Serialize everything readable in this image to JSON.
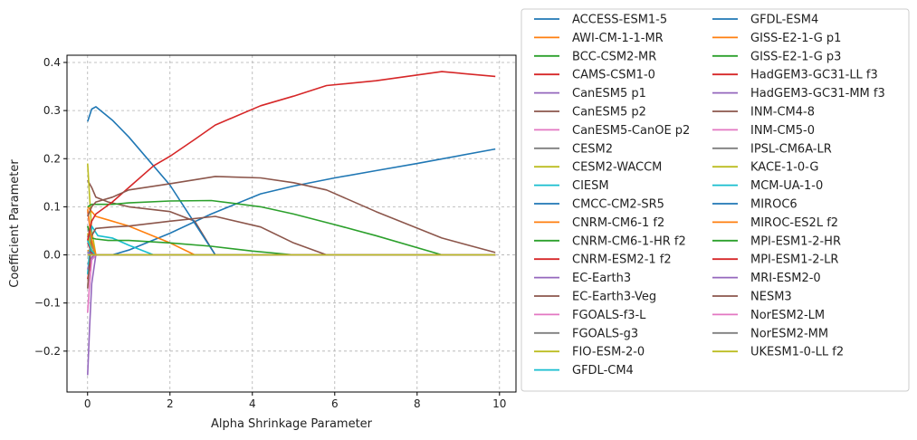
{
  "chart_data": {
    "type": "line",
    "xlabel": "Alpha Shrinkage Parameter",
    "ylabel": "Coefficient Parameter",
    "xlim": [
      -0.5,
      10.4
    ],
    "ylim": [
      -0.285,
      0.415
    ],
    "xticks": [
      0,
      2,
      4,
      6,
      8,
      10
    ],
    "yticks": [
      -0.2,
      -0.1,
      0.0,
      0.1,
      0.2,
      0.3,
      0.4
    ],
    "xtick_labels": [
      "0",
      "2",
      "4",
      "6",
      "8",
      "10"
    ],
    "ytick_labels": [
      "−0.2",
      "−0.1",
      "0.0",
      "0.1",
      "0.2",
      "0.3",
      "0.4"
    ],
    "grid": true,
    "legend_placement": "outside-right",
    "legend_columns": 2,
    "series": [
      {
        "name": "ACCESS-ESM1-5",
        "color": "#1f77b4",
        "x": [
          0,
          0.2,
          0.6,
          1.0,
          2.0,
          3.0,
          4.2,
          5.0,
          6.0,
          7.0,
          8.0,
          9.9
        ],
        "y": [
          -0.02,
          0.0,
          0.0,
          0.01,
          0.045,
          0.085,
          0.127,
          0.143,
          0.16,
          0.175,
          0.19,
          0.22
        ]
      },
      {
        "name": "AWI-CM-1-1-MR",
        "color": "#ff7f0e",
        "x": [
          0,
          0.1,
          0.2,
          9.9
        ],
        "y": [
          0.01,
          0.002,
          0.0,
          0.0
        ]
      },
      {
        "name": "BCC-CSM2-MR",
        "color": "#2ca02c",
        "x": [
          0,
          0.1,
          0.2,
          0.5,
          1.0,
          2.0,
          3.0,
          4.5,
          6.0,
          8.6,
          9.9
        ],
        "y": [
          0.0,
          0.0,
          0.0,
          0.0,
          0.0,
          0.0,
          0.0,
          0.0,
          0.0,
          0.0,
          0.0
        ]
      },
      {
        "name": "CAMS-CSM1-0",
        "color": "#d62728",
        "x": [
          0,
          0.1,
          0.2,
          9.9
        ],
        "y": [
          -0.05,
          -0.005,
          0.0,
          0.0
        ]
      },
      {
        "name": "CanESM5 p1",
        "color": "#9467bd",
        "x": [
          0,
          0.05,
          0.1,
          0.2,
          9.9
        ],
        "y": [
          -0.25,
          -0.15,
          -0.06,
          0.0,
          0.0
        ]
      },
      {
        "name": "CanESM5 p2",
        "color": "#8c564b",
        "x": [
          0,
          0.1,
          0.2,
          0.5,
          1.0,
          2.0,
          2.6,
          3.1,
          9.9
        ],
        "y": [
          0.155,
          0.14,
          0.12,
          0.11,
          0.1,
          0.09,
          0.07,
          0.0,
          0.0
        ]
      },
      {
        "name": "CanESM5-CanOE p2",
        "color": "#e377c2",
        "x": [
          0,
          0.05,
          0.1,
          0.2,
          9.9
        ],
        "y": [
          0.09,
          0.06,
          0.03,
          0.0,
          0.0
        ]
      },
      {
        "name": "CESM2",
        "color": "#7f7f7f",
        "x": [
          0,
          0.1,
          0.2,
          9.9
        ],
        "y": [
          0.06,
          0.02,
          0.0,
          0.0
        ]
      },
      {
        "name": "CESM2-WACCM",
        "color": "#bcbd22",
        "x": [
          0,
          0.05,
          0.1,
          0.2,
          9.9
        ],
        "y": [
          0.19,
          0.12,
          0.05,
          0.0,
          0.0
        ]
      },
      {
        "name": "CIESM",
        "color": "#17becf",
        "x": [
          0,
          0.1,
          0.25,
          0.6,
          1.0,
          1.6,
          9.9
        ],
        "y": [
          -0.04,
          0.06,
          0.04,
          0.035,
          0.02,
          0.0,
          0.0
        ]
      },
      {
        "name": "CMCC-CM2-SR5",
        "color": "#1f77b4",
        "x": [
          0,
          0.1,
          0.2,
          0.6,
          1.0,
          2.0,
          3.1,
          9.9
        ],
        "y": [
          0.277,
          0.303,
          0.308,
          0.28,
          0.245,
          0.145,
          0.0,
          0.0
        ]
      },
      {
        "name": "CNRM-CM6-1 f2",
        "color": "#ff7f0e",
        "x": [
          0,
          0.1,
          0.2,
          0.6,
          1.0,
          2.0,
          2.6,
          9.9
        ],
        "y": [
          0.1,
          0.09,
          0.08,
          0.07,
          0.06,
          0.025,
          0.0,
          0.0
        ]
      },
      {
        "name": "CNRM-CM6-1-HR f2",
        "color": "#2ca02c",
        "x": [
          0,
          0.1,
          0.2,
          0.5,
          1.0,
          2.0,
          3.0,
          4.0,
          5.0,
          9.9
        ],
        "y": [
          0.06,
          0.035,
          0.033,
          0.03,
          0.03,
          0.025,
          0.018,
          0.008,
          0.0,
          0.0
        ]
      },
      {
        "name": "CNRM-ESM2-1 f2",
        "color": "#d62728",
        "x": [
          0,
          0.1,
          0.2,
          9.9
        ],
        "y": [
          0.025,
          0.005,
          0.0,
          0.0
        ]
      },
      {
        "name": "EC-Earth3",
        "color": "#9467bd",
        "x": [
          0,
          0.1,
          0.2,
          9.9
        ],
        "y": [
          -0.03,
          -0.005,
          0.0,
          0.0
        ]
      },
      {
        "name": "EC-Earth3-Veg",
        "color": "#8c564b",
        "x": [
          0,
          0.1,
          0.2,
          0.6,
          1.0,
          2.0,
          3.1,
          4.2,
          5.0,
          5.8,
          9.9
        ],
        "y": [
          -0.07,
          0.04,
          0.055,
          0.058,
          0.06,
          0.07,
          0.08,
          0.058,
          0.025,
          0.0,
          0.0
        ]
      },
      {
        "name": "FGOALS-f3-L",
        "color": "#e377c2",
        "x": [
          0,
          0.05,
          0.1,
          0.2,
          9.9
        ],
        "y": [
          -0.12,
          -0.06,
          -0.01,
          0.0,
          0.0
        ]
      },
      {
        "name": "FGOALS-g3",
        "color": "#7f7f7f",
        "x": [
          0,
          0.1,
          0.2,
          9.9
        ],
        "y": [
          0.04,
          0.01,
          0.0,
          0.0
        ]
      },
      {
        "name": "FIO-ESM-2-0",
        "color": "#bcbd22",
        "x": [
          0,
          0.1,
          0.2,
          9.9
        ],
        "y": [
          0.045,
          0.01,
          0.0,
          0.0
        ]
      },
      {
        "name": "GFDL-CM4",
        "color": "#17becf",
        "x": [
          0,
          0.1,
          0.2,
          9.9
        ],
        "y": [
          0.03,
          0.008,
          0.0,
          0.0
        ]
      },
      {
        "name": "GFDL-ESM4",
        "color": "#1f77b4",
        "x": [
          0,
          0.1,
          0.2,
          9.9
        ],
        "y": [
          0.005,
          0.001,
          0.0,
          0.0
        ]
      },
      {
        "name": "GISS-E2-1-G p1",
        "color": "#ff7f0e",
        "x": [
          0,
          0.1,
          0.2,
          9.9
        ],
        "y": [
          0.095,
          0.03,
          0.0,
          0.0
        ]
      },
      {
        "name": "GISS-E2-1-G p3",
        "color": "#2ca02c",
        "x": [
          0,
          0.1,
          0.2,
          0.6,
          1.0,
          2.0,
          3.0,
          4.2,
          5.0,
          6.0,
          7.0,
          8.6,
          9.9
        ],
        "y": [
          0.1,
          0.105,
          0.105,
          0.105,
          0.108,
          0.112,
          0.113,
          0.1,
          0.085,
          0.063,
          0.04,
          0.0,
          0.0
        ]
      },
      {
        "name": "HadGEM3-GC31-LL f3",
        "color": "#d62728",
        "x": [
          0,
          0.1,
          0.2,
          0.6,
          1.0,
          1.6,
          2.0,
          2.6,
          3.1,
          4.2,
          5.0,
          5.8,
          7.0,
          8.6,
          9.9
        ],
        "y": [
          0.03,
          0.07,
          0.085,
          0.11,
          0.14,
          0.185,
          0.205,
          0.24,
          0.27,
          0.31,
          0.33,
          0.352,
          0.362,
          0.381,
          0.371
        ]
      },
      {
        "name": "HadGEM3-GC31-MM f3",
        "color": "#9467bd",
        "x": [
          0,
          0.1,
          0.2,
          9.9
        ],
        "y": [
          0.005,
          0.001,
          0.0,
          0.0
        ]
      },
      {
        "name": "INM-CM4-8",
        "color": "#8c564b",
        "x": [
          0,
          0.1,
          0.2,
          0.6,
          1.0,
          2.0,
          3.1,
          4.2,
          5.0,
          5.8,
          7.0,
          8.6,
          9.9
        ],
        "y": [
          0.08,
          0.1,
          0.11,
          0.12,
          0.135,
          0.148,
          0.163,
          0.16,
          0.15,
          0.135,
          0.09,
          0.035,
          0.005
        ]
      },
      {
        "name": "INM-CM5-0",
        "color": "#e377c2",
        "x": [
          0,
          0.1,
          0.2,
          9.9
        ],
        "y": [
          0.0,
          0.0,
          0.0,
          0.0
        ]
      },
      {
        "name": "IPSL-CM6A-LR",
        "color": "#7f7f7f",
        "x": [
          0,
          0.1,
          0.2,
          9.9
        ],
        "y": [
          0.0,
          0.0,
          0.0,
          0.0
        ]
      },
      {
        "name": "KACE-1-0-G",
        "color": "#bcbd22",
        "x": [
          0,
          0.1,
          0.2,
          9.9
        ],
        "y": [
          0.0,
          0.0,
          0.0,
          0.0
        ]
      },
      {
        "name": "MCM-UA-1-0",
        "color": "#17becf",
        "x": [
          0,
          0.1,
          0.2,
          9.9
        ],
        "y": [
          0.0,
          0.0,
          0.0,
          0.0
        ]
      },
      {
        "name": "MIROC6",
        "color": "#1f77b4",
        "x": [
          0,
          0.1,
          0.2,
          9.9
        ],
        "y": [
          0.0,
          0.0,
          0.0,
          0.0
        ]
      },
      {
        "name": "MIROC-ES2L f2",
        "color": "#ff7f0e",
        "x": [
          0,
          0.1,
          0.2,
          9.9
        ],
        "y": [
          0.0,
          0.0,
          0.0,
          0.0
        ]
      },
      {
        "name": "MPI-ESM1-2-HR",
        "color": "#2ca02c",
        "x": [
          0,
          0.1,
          0.2,
          9.9
        ],
        "y": [
          0.0,
          0.0,
          0.0,
          0.0
        ]
      },
      {
        "name": "MPI-ESM1-2-LR",
        "color": "#d62728",
        "x": [
          0,
          0.1,
          0.2,
          9.9
        ],
        "y": [
          0.0,
          0.0,
          0.0,
          0.0
        ]
      },
      {
        "name": "MRI-ESM2-0",
        "color": "#9467bd",
        "x": [
          0,
          0.1,
          0.2,
          9.9
        ],
        "y": [
          0.0,
          0.0,
          0.0,
          0.0
        ]
      },
      {
        "name": "NESM3",
        "color": "#8c564b",
        "x": [
          0,
          0.1,
          0.2,
          9.9
        ],
        "y": [
          0.0,
          0.0,
          0.0,
          0.0
        ]
      },
      {
        "name": "NorESM2-LM",
        "color": "#e377c2",
        "x": [
          0,
          0.1,
          0.2,
          9.9
        ],
        "y": [
          0.0,
          0.0,
          0.0,
          0.0
        ]
      },
      {
        "name": "NorESM2-MM",
        "color": "#7f7f7f",
        "x": [
          0,
          0.1,
          0.2,
          9.9
        ],
        "y": [
          0.0,
          0.0,
          0.0,
          0.0
        ]
      },
      {
        "name": "UKESM1-0-LL f2",
        "color": "#bcbd22",
        "x": [
          0,
          0.1,
          0.2,
          9.9
        ],
        "y": [
          0.0,
          0.0,
          0.0,
          0.0
        ]
      }
    ]
  }
}
